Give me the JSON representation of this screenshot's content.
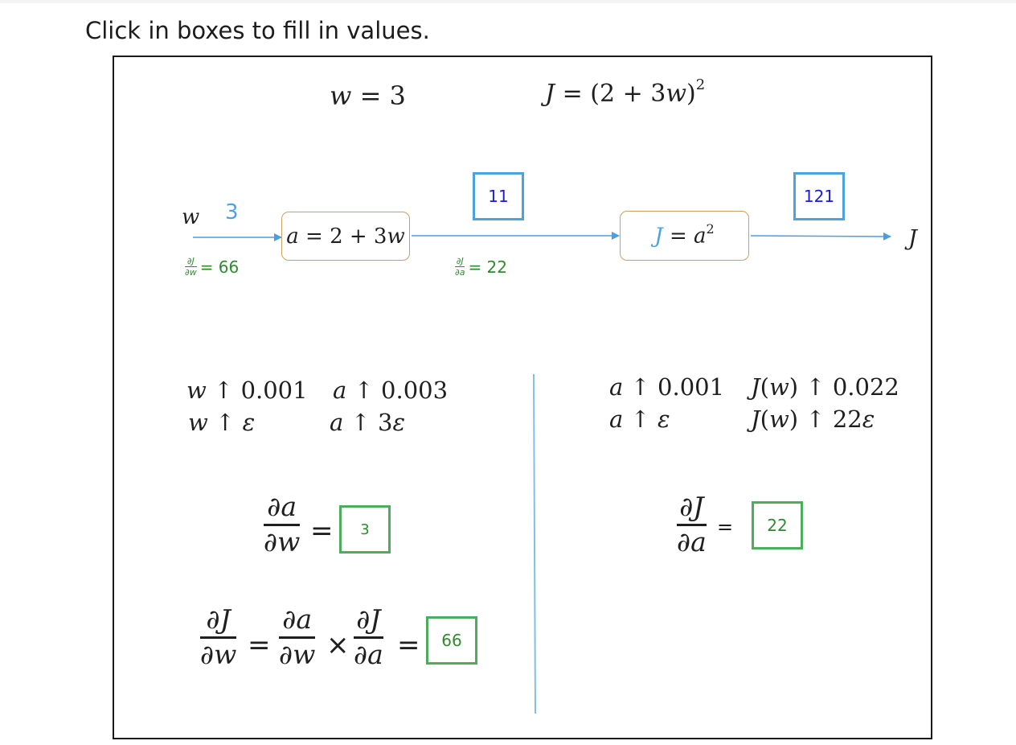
{
  "instruction": "Click in boxes to fill in values.",
  "header": {
    "w_var": "w",
    "w_eq": " = 3",
    "J_var": "J",
    "J_eq_1": " = (2 + 3",
    "J_eq_w": "w",
    "J_eq_2": ")",
    "J_eq_exp": "2"
  },
  "graph": {
    "input_var": "w",
    "input_value": "3",
    "node_a": {
      "lhs": "a",
      "eq": " = 2 + 3",
      "w": "w"
    },
    "node_J": {
      "lhs": "J",
      "eq": " = ",
      "a": "a",
      "exp": "2"
    },
    "output_var": "J",
    "box_a_value": "11",
    "box_J_value": "121",
    "deriv_w": {
      "num": "∂J",
      "den": "∂w",
      "value": "= 66"
    },
    "deriv_a": {
      "num": "∂J",
      "den": "∂a",
      "value": "= 22"
    }
  },
  "left_panel": {
    "row1_col1_var": "w",
    "row1_col1_rest": " ↑ 0.001",
    "row1_col2_var": "a",
    "row1_col2_rest": " ↑ 0.003",
    "row2_col1_var": "w",
    "row2_col1_rest": " ↑ ",
    "row2_col1_eps": "ε",
    "row2_col2_var": "a",
    "row2_col2_rest": " ↑ 3",
    "row2_col2_eps": "ε",
    "da_dw": {
      "num": "∂a",
      "den": "∂w",
      "eq": "="
    },
    "da_dw_value": "3",
    "chain": {
      "f1": {
        "num": "∂J",
        "den": "∂w"
      },
      "eq1": "=",
      "f2": {
        "num": "∂a",
        "den": "∂w"
      },
      "times": "×",
      "f3": {
        "num": "∂J",
        "den": "∂a"
      },
      "eq2": "="
    },
    "chain_value": "66"
  },
  "right_panel": {
    "row1_col1_var": "a",
    "row1_col1_rest": " ↑ 0.001",
    "row1_col2_J": "J",
    "row1_col2_w": "w",
    "row1_col2_rest": " ↑ 0.022",
    "row2_col1_var": "a",
    "row2_col1_rest": " ↑ ",
    "row2_col1_eps": "ε",
    "row2_col2_J": "J",
    "row2_col2_w": "w",
    "row2_col2_rest": " ↑ 22",
    "row2_col2_eps": "ε",
    "dJ_da": {
      "num": "∂J",
      "den": "∂a",
      "eq": "="
    },
    "dJ_da_value": "22"
  },
  "colors": {
    "value_box_blue": "#4aa3df",
    "value_box_green": "#4cae5c",
    "value_text_blue": "#1a1ae0",
    "derivative_green": "#2e8b2e",
    "arrow_blue": "#4a9fe0",
    "node_border": "#c9a261"
  },
  "icons": [
    "arrow-right-icon"
  ]
}
